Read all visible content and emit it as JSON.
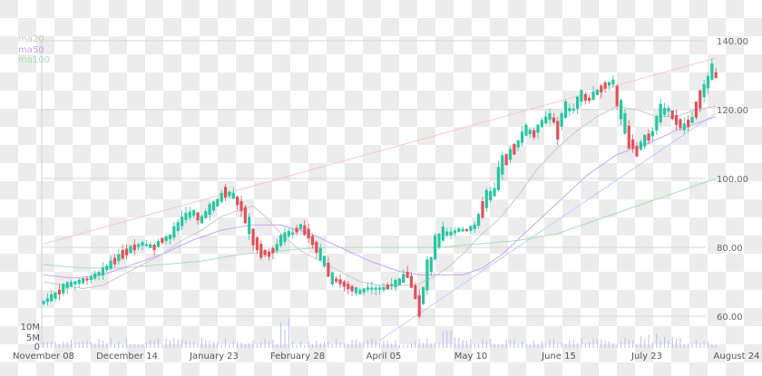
{
  "chart_data": {
    "type": "candlestick",
    "title": "",
    "xlabel": "",
    "ylabel": "",
    "ylim": [
      54,
      142
    ],
    "grid": true,
    "y_ticks": [
      60,
      80,
      100,
      120,
      140
    ],
    "y_tick_labels": [
      "60.00",
      "80.00",
      "100.00",
      "120.00",
      "140.00"
    ],
    "x_tick_labels": [
      "November 08",
      "December 14",
      "January 23",
      "February 28",
      "April 05",
      "May 10",
      "June 15",
      "July 23",
      "August 24"
    ],
    "volume_axis": {
      "ticks": [
        0,
        5,
        10
      ],
      "labels": [
        "0",
        "5M",
        "10M"
      ]
    },
    "legend": [
      {
        "name": "ma20",
        "color": "#c8c8c8"
      },
      {
        "name": "ma50",
        "color": "#c9a3f0"
      },
      {
        "name": "ma100",
        "color": "#a8dcb8"
      }
    ],
    "colors": {
      "up": "#26c6a0",
      "down": "#e0505a",
      "volume": "#b9bff0",
      "trendline_upper": "#f5c6d2",
      "trendline_lower": "#bcd2f2",
      "grid": "#d6d6d6"
    },
    "price_path": [
      [
        0,
        64
      ],
      [
        6,
        66
      ],
      [
        12,
        69
      ],
      [
        18,
        70
      ],
      [
        24,
        71
      ],
      [
        30,
        73
      ],
      [
        34,
        75
      ],
      [
        40,
        78
      ],
      [
        46,
        80
      ],
      [
        50,
        81
      ],
      [
        56,
        80
      ],
      [
        60,
        82
      ],
      [
        64,
        83
      ],
      [
        68,
        86
      ],
      [
        72,
        89
      ],
      [
        76,
        90
      ],
      [
        80,
        88
      ],
      [
        84,
        91
      ],
      [
        88,
        93
      ],
      [
        92,
        96
      ],
      [
        96,
        95
      ],
      [
        100,
        92
      ],
      [
        103,
        88
      ],
      [
        106,
        83
      ],
      [
        110,
        79
      ],
      [
        114,
        78
      ],
      [
        118,
        80
      ],
      [
        120,
        82
      ],
      [
        124,
        84
      ],
      [
        126,
        84
      ],
      [
        130,
        86
      ],
      [
        134,
        84
      ],
      [
        138,
        80
      ],
      [
        142,
        76
      ],
      [
        146,
        71
      ],
      [
        150,
        70
      ],
      [
        156,
        68
      ],
      [
        160,
        67
      ],
      [
        164,
        68
      ],
      [
        168,
        68
      ],
      [
        172,
        68
      ],
      [
        176,
        69
      ],
      [
        180,
        70
      ],
      [
        184,
        72
      ],
      [
        186,
        70
      ],
      [
        188,
        67
      ],
      [
        190,
        63
      ],
      [
        192,
        66
      ],
      [
        194,
        72
      ],
      [
        196,
        75
      ],
      [
        198,
        80
      ],
      [
        202,
        84
      ],
      [
        206,
        84
      ],
      [
        210,
        85
      ],
      [
        214,
        85
      ],
      [
        218,
        86
      ],
      [
        220,
        88
      ],
      [
        224,
        94
      ],
      [
        228,
        96
      ],
      [
        232,
        104
      ],
      [
        236,
        107
      ],
      [
        240,
        110
      ],
      [
        244,
        114
      ],
      [
        248,
        113
      ],
      [
        252,
        116
      ],
      [
        256,
        118
      ],
      [
        258,
        117
      ],
      [
        260,
        114
      ],
      [
        264,
        120
      ],
      [
        268,
        120
      ],
      [
        272,
        124
      ],
      [
        276,
        123
      ],
      [
        280,
        125
      ],
      [
        284,
        127
      ],
      [
        288,
        128
      ],
      [
        290,
        124
      ],
      [
        294,
        116
      ],
      [
        296,
        112
      ],
      [
        300,
        108
      ],
      [
        304,
        111
      ],
      [
        308,
        113
      ],
      [
        312,
        119
      ],
      [
        316,
        120
      ],
      [
        320,
        117
      ],
      [
        324,
        115
      ],
      [
        328,
        117
      ],
      [
        332,
        123
      ],
      [
        336,
        128
      ],
      [
        338,
        131
      ],
      [
        340,
        130
      ]
    ],
    "ma20_path": [
      [
        0,
        70
      ],
      [
        10,
        69
      ],
      [
        20,
        68
      ],
      [
        30,
        69
      ],
      [
        40,
        72
      ],
      [
        50,
        75
      ],
      [
        60,
        78
      ],
      [
        70,
        82
      ],
      [
        80,
        85
      ],
      [
        90,
        89
      ],
      [
        100,
        91
      ],
      [
        106,
        92
      ],
      [
        112,
        89
      ],
      [
        120,
        84
      ],
      [
        130,
        79
      ],
      [
        140,
        76
      ],
      [
        150,
        73
      ],
      [
        160,
        70
      ],
      [
        170,
        69
      ],
      [
        180,
        69
      ],
      [
        188,
        69
      ],
      [
        196,
        71
      ],
      [
        204,
        74
      ],
      [
        212,
        78
      ],
      [
        220,
        83
      ],
      [
        230,
        88
      ],
      [
        240,
        95
      ],
      [
        250,
        103
      ],
      [
        260,
        109
      ],
      [
        270,
        114
      ],
      [
        280,
        118
      ],
      [
        290,
        121
      ],
      [
        300,
        120
      ],
      [
        310,
        118
      ],
      [
        320,
        118
      ],
      [
        330,
        120
      ],
      [
        340,
        121
      ]
    ],
    "ma50_path": [
      [
        0,
        72
      ],
      [
        15,
        71
      ],
      [
        30,
        72
      ],
      [
        45,
        75
      ],
      [
        60,
        78
      ],
      [
        75,
        82
      ],
      [
        90,
        85
      ],
      [
        105,
        86.5
      ],
      [
        120,
        86.5
      ],
      [
        135,
        84
      ],
      [
        150,
        80
      ],
      [
        165,
        76
      ],
      [
        180,
        73
      ],
      [
        190,
        72
      ],
      [
        200,
        72
      ],
      [
        212,
        72
      ],
      [
        222,
        74
      ],
      [
        232,
        78
      ],
      [
        245,
        85
      ],
      [
        260,
        93
      ],
      [
        275,
        101
      ],
      [
        290,
        107
      ],
      [
        305,
        110
      ],
      [
        320,
        114
      ],
      [
        330,
        116
      ],
      [
        340,
        118
      ]
    ],
    "ma100_path": [
      [
        0,
        75
      ],
      [
        20,
        74
      ],
      [
        40,
        74
      ],
      [
        60,
        75
      ],
      [
        80,
        76
      ],
      [
        100,
        78
      ],
      [
        120,
        79
      ],
      [
        140,
        80
      ],
      [
        160,
        80
      ],
      [
        180,
        80
      ],
      [
        200,
        80
      ],
      [
        220,
        81
      ],
      [
        240,
        82
      ],
      [
        260,
        84
      ],
      [
        280,
        88
      ],
      [
        300,
        92
      ],
      [
        315,
        95
      ],
      [
        330,
        98
      ],
      [
        340,
        100
      ]
    ],
    "trendlines": [
      {
        "from": [
          0,
          81
        ],
        "to": [
          340,
          135
        ],
        "color": "#f5c6d2"
      },
      {
        "from": [
          170,
          53
        ],
        "to": [
          340,
          119
        ],
        "color": "#bcd2f2"
      }
    ]
  }
}
